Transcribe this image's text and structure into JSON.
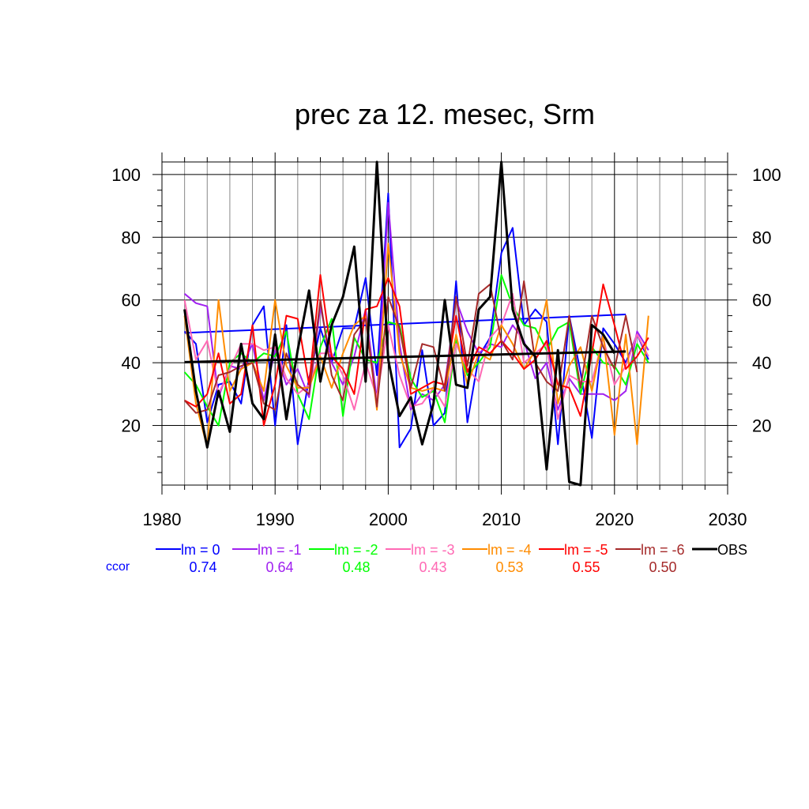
{
  "chart_data": {
    "type": "line",
    "title": "prec za 12. mesec, Srm",
    "xlabel": "",
    "ylabel": "",
    "xlim": [
      1980,
      2030
    ],
    "ylim": [
      1,
      104
    ],
    "x_ticks": [
      1980,
      1990,
      2000,
      2010,
      2020,
      2030
    ],
    "y_ticks": [
      20,
      40,
      60,
      80,
      100
    ],
    "grid": true,
    "ccor_label": "ccor",
    "series": [
      {
        "name": "lm = 0",
        "color": "#0000ff",
        "ccor": "0.74",
        "values": [
          50,
          46,
          21,
          33,
          34,
          27,
          52,
          58,
          20,
          52,
          14,
          35,
          51,
          40,
          51,
          51,
          67,
          36,
          94,
          13,
          19,
          44,
          20,
          24,
          66,
          21,
          42,
          48,
          75,
          83,
          52,
          57,
          53,
          14,
          55,
          37,
          16,
          51,
          46,
          40,
          49,
          41
        ],
        "trend": [
          49.5,
          55.4
        ]
      },
      {
        "name": "lm = -1",
        "color": "#a020f0",
        "ccor": "0.64",
        "values": [
          62,
          59,
          58,
          29,
          39,
          38,
          46,
          28,
          44,
          33,
          38,
          29,
          58,
          40,
          33,
          42,
          57,
          28,
          91,
          46,
          25,
          30,
          28,
          33,
          60,
          50,
          43,
          46,
          45,
          52,
          47,
          35,
          40,
          25,
          35,
          30,
          30,
          30,
          28,
          31,
          50,
          44
        ]
      },
      {
        "name": "lm = -2",
        "color": "#00ff00",
        "ccor": "0.48",
        "values": [
          37,
          33,
          26,
          20,
          40,
          43,
          40,
          43,
          42,
          50,
          30,
          22,
          45,
          54,
          23,
          48,
          41,
          40,
          53,
          52,
          35,
          29,
          31,
          21,
          47,
          36,
          40,
          45,
          68,
          58,
          52,
          51,
          44,
          51,
          53,
          30,
          45,
          40,
          39,
          33,
          46,
          40
        ]
      },
      {
        "name": "lm = -3",
        "color": "#ff69b4",
        "ccor": "0.43",
        "values": [
          60,
          41,
          47,
          30,
          38,
          46,
          46,
          44,
          45,
          35,
          30,
          33,
          43,
          43,
          36,
          25,
          40,
          29,
          52,
          36,
          26,
          27,
          32,
          26,
          46,
          38,
          34,
          48,
          52,
          62,
          40,
          43,
          46,
          22,
          36,
          34,
          34,
          48,
          33,
          39,
          49,
          42
        ]
      },
      {
        "name": "lm = -4",
        "color": "#ff8c00",
        "ccor": "0.53",
        "values": [
          55,
          27,
          13,
          60,
          31,
          38,
          40,
          31,
          60,
          39,
          32,
          32,
          42,
          32,
          43,
          52,
          55,
          25,
          78,
          43,
          32,
          31,
          32,
          31,
          49,
          33,
          43,
          41,
          52,
          46,
          38,
          44,
          60,
          27,
          39,
          45,
          31,
          49,
          17,
          49,
          14,
          55
        ]
      },
      {
        "name": "lm = -5",
        "color": "#ff0000",
        "ccor": "0.55",
        "values": [
          28,
          26,
          30,
          43,
          27,
          30,
          52,
          20,
          33,
          55,
          54,
          33,
          68,
          42,
          38,
          30,
          57,
          58,
          67,
          58,
          30,
          32,
          34,
          33,
          55,
          37,
          45,
          43,
          47,
          43,
          38,
          41,
          47,
          33,
          32,
          23,
          43,
          65,
          52,
          38,
          42,
          48
        ]
      },
      {
        "name": "lm = -6",
        "color": "#a52a2a",
        "ccor": "0.50",
        "values": [
          28,
          24,
          25,
          36,
          37,
          39,
          40,
          27,
          25,
          43,
          33,
          30,
          60,
          36,
          28,
          49,
          54,
          26,
          61,
          51,
          32,
          46,
          45,
          31,
          61,
          39,
          62,
          65,
          47,
          41,
          66,
          40,
          34,
          31,
          55,
          32,
          55,
          45,
          38,
          55,
          37
        ]
      }
    ],
    "obs": {
      "name": "OBS",
      "color": "#000000",
      "values": [
        57,
        31,
        13,
        31,
        18,
        46,
        27,
        22,
        49,
        22,
        44,
        63,
        34,
        52,
        61,
        77,
        34,
        104,
        41,
        23,
        29,
        14,
        27,
        60,
        33,
        32,
        57,
        61,
        104,
        57,
        46,
        42,
        6,
        44,
        2,
        1,
        52,
        49,
        43
      ],
      "trend": [
        40.2,
        43.6
      ]
    }
  }
}
